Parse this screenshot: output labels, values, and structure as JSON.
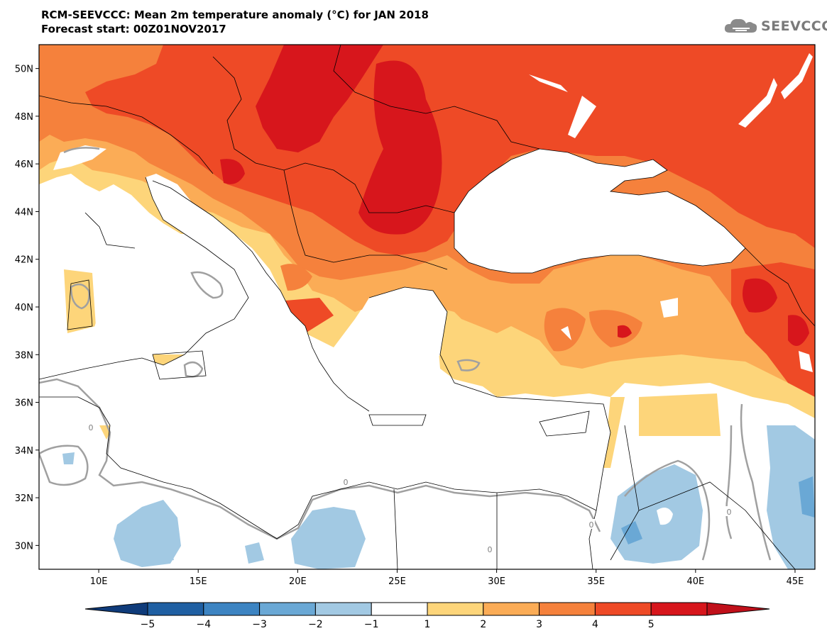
{
  "header": {
    "title": "RCM-SEEVCCC: Mean 2m temperature anomaly (°C) for JAN 2018",
    "subtitle": "Forecast start: 00Z01NOV2017",
    "logo_text": "SEEVCCC"
  },
  "map": {
    "lon_range": [
      7,
      46
    ],
    "lat_range": [
      29,
      51
    ],
    "lat_ticks": [
      {
        "value": 50,
        "label": "50N"
      },
      {
        "value": 48,
        "label": "48N"
      },
      {
        "value": 46,
        "label": "46N"
      },
      {
        "value": 44,
        "label": "44N"
      },
      {
        "value": 42,
        "label": "42N"
      },
      {
        "value": 40,
        "label": "40N"
      },
      {
        "value": 38,
        "label": "38N"
      },
      {
        "value": 36,
        "label": "36N"
      },
      {
        "value": 34,
        "label": "34N"
      },
      {
        "value": 32,
        "label": "32N"
      },
      {
        "value": 30,
        "label": "30N"
      }
    ],
    "lon_ticks": [
      {
        "value": 10,
        "label": "10E"
      },
      {
        "value": 15,
        "label": "15E"
      },
      {
        "value": 20,
        "label": "20E"
      },
      {
        "value": 25,
        "label": "25E"
      },
      {
        "value": 30,
        "label": "30E"
      },
      {
        "value": 35,
        "label": "35E"
      },
      {
        "value": 40,
        "label": "40E"
      },
      {
        "value": 45,
        "label": "45E"
      }
    ],
    "contour_labels": [
      "0",
      "0",
      "0",
      "0",
      "0"
    ]
  },
  "colorbar": {
    "labels": [
      "-5",
      "-4",
      "-3",
      "-2",
      "-1",
      "1",
      "2",
      "3",
      "4",
      "5"
    ],
    "colors": [
      "#1f5fa2",
      "#3d84c2",
      "#6aa8d5",
      "#a2c9e3",
      "#ffffff",
      "#fdd57a",
      "#fbac56",
      "#f5813c",
      "#ee4a26",
      "#d7161c"
    ],
    "end_low_color": "#0f3b7a",
    "end_high_color": "#c0101a"
  },
  "chart_data": {
    "type": "heatmap",
    "title": "RCM-SEEVCCC: Mean 2m temperature anomaly (°C) for JAN 2018",
    "variable": "Mean 2m temperature anomaly",
    "unit": "°C",
    "legend_levels": [
      -5,
      -4,
      -3,
      -2,
      -1,
      1,
      2,
      3,
      4,
      5
    ],
    "xlim": [
      7,
      46
    ],
    "ylim": [
      29,
      51
    ]
  }
}
